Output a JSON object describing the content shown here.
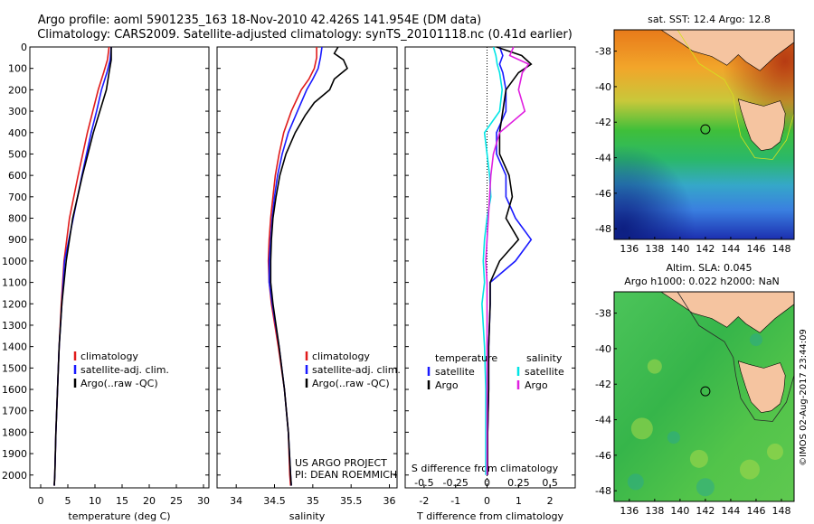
{
  "header": {
    "line1": "Argo profile: aoml 5901235_163 18-Nov-2010 42.426S 141.954E (DM data)",
    "line2": "Climatology: CARS2009. Satellite-adjusted climatology: synTS_20101118.nc (0.41d earlier)"
  },
  "credit": "US ARGO PROJECT",
  "pi": "PI: DEAN ROEMMICH",
  "stamp": "©IMOS 02-Aug-2017 23:44:09",
  "colors": {
    "climatology": "#e01b1b",
    "satellite": "#1a1aff",
    "argo": "#000000",
    "s_satellite": "#00e5e5",
    "s_argo": "#e020e0",
    "land": "#f5c4a0"
  },
  "chart_data": [
    {
      "type": "line",
      "id": "temperature",
      "xlabel": "temperature (deg C)",
      "xlim": [
        -2,
        31
      ],
      "xticks": [
        0,
        5,
        10,
        15,
        20,
        25,
        30
      ],
      "ylim": [
        2060,
        0
      ],
      "yticks": [
        0,
        100,
        200,
        300,
        400,
        500,
        600,
        700,
        800,
        900,
        1000,
        1100,
        1200,
        1300,
        1400,
        1500,
        1600,
        1700,
        1800,
        1900,
        2000
      ],
      "legend": [
        "climatology",
        "satellite-adj. clim.",
        "Argo(..raw -QC)"
      ],
      "legend_position": "lower-right",
      "series": [
        {
          "name": "climatology",
          "color": "#e01b1b",
          "depth": [
            0,
            60,
            120,
            200,
            300,
            400,
            600,
            800,
            1000,
            1200,
            1400,
            1600,
            1800,
            2000,
            2050
          ],
          "values": [
            12.6,
            12.3,
            11.6,
            10.6,
            9.6,
            8.6,
            6.9,
            5.3,
            4.3,
            3.8,
            3.4,
            3.1,
            2.8,
            2.6,
            2.5
          ]
        },
        {
          "name": "satellite-adj. clim.",
          "color": "#1a1aff",
          "depth": [
            0,
            60,
            120,
            200,
            300,
            400,
            600,
            800,
            1000,
            1200,
            1400,
            1600,
            1800,
            2000,
            2050
          ],
          "values": [
            13.0,
            12.8,
            12.2,
            11.2,
            10.3,
            9.3,
            7.6,
            6.0,
            4.4,
            3.9,
            3.4,
            3.1,
            2.8,
            2.6,
            2.5
          ]
        },
        {
          "name": "Argo(..raw -QC)",
          "color": "#000000",
          "depth": [
            0,
            60,
            120,
            200,
            300,
            400,
            600,
            800,
            1000,
            1200,
            1400,
            1600,
            1800,
            2000,
            2050
          ],
          "values": [
            13.0,
            13.0,
            12.6,
            12.1,
            10.9,
            9.7,
            7.7,
            5.9,
            4.7,
            3.9,
            3.4,
            3.1,
            2.8,
            2.6,
            2.5
          ]
        }
      ]
    },
    {
      "type": "line",
      "id": "salinity",
      "xlabel": "salinity",
      "xlim": [
        33.75,
        36.1
      ],
      "xticks": [
        34,
        34.5,
        35,
        35.5,
        36
      ],
      "ylim": [
        2060,
        0
      ],
      "legend": [
        "climatology",
        "satellite-adj. clim.",
        "Argo(..raw -QC)"
      ],
      "legend_position": "lower-right",
      "series": [
        {
          "name": "climatology",
          "color": "#e01b1b",
          "depth": [
            0,
            50,
            100,
            150,
            200,
            300,
            400,
            500,
            600,
            700,
            800,
            900,
            1000,
            1100,
            1200,
            1400,
            1600,
            1800,
            2000,
            2050
          ],
          "values": [
            35.05,
            35.05,
            35.02,
            34.95,
            34.85,
            34.72,
            34.62,
            34.56,
            34.51,
            34.48,
            34.45,
            34.43,
            34.42,
            34.43,
            34.46,
            34.55,
            34.63,
            34.68,
            34.7,
            34.71
          ]
        },
        {
          "name": "satellite-adj. clim.",
          "color": "#1a1aff",
          "depth": [
            0,
            50,
            100,
            150,
            200,
            300,
            400,
            500,
            600,
            700,
            800,
            900,
            1000,
            1100,
            1200,
            1400,
            1600,
            1800,
            2000,
            2050
          ],
          "values": [
            35.12,
            35.1,
            35.07,
            35.0,
            34.92,
            34.8,
            34.68,
            34.6,
            34.54,
            34.5,
            34.47,
            34.45,
            34.43,
            34.43,
            34.47,
            34.56,
            34.63,
            34.68,
            34.71,
            34.72
          ]
        },
        {
          "name": "Argo(..raw -QC)",
          "color": "#000000",
          "depth": [
            0,
            30,
            60,
            100,
            150,
            200,
            260,
            320,
            400,
            500,
            600,
            700,
            800,
            900,
            1000,
            1100,
            1200,
            1400,
            1600,
            1800,
            2000,
            2050
          ],
          "values": [
            35.33,
            35.28,
            35.4,
            35.45,
            35.28,
            35.22,
            35.02,
            34.9,
            34.77,
            34.65,
            34.57,
            34.52,
            34.48,
            34.46,
            34.45,
            34.45,
            34.48,
            34.56,
            34.63,
            34.68,
            34.71,
            34.72
          ]
        }
      ]
    },
    {
      "type": "line",
      "id": "difference",
      "xlabel": "T difference from climatology",
      "x2label": "S difference from climatology",
      "xlim": [
        -2.6,
        2.8
      ],
      "xticks": [
        -2,
        -1,
        0,
        1,
        2
      ],
      "x2lim": [
        -0.65,
        0.7
      ],
      "x2ticks": [
        -0.5,
        -0.25,
        0,
        0.25,
        0.5
      ],
      "x2ticklabels": [
        "-0.5",
        "-0.25",
        "0",
        "0.25",
        "0.5"
      ],
      "ylim": [
        2060,
        0
      ],
      "legend_titles": [
        "temperature",
        "salinity"
      ],
      "legend": [
        "satellite",
        "Argo",
        "satellite",
        "Argo"
      ],
      "legend_position": "lower-right",
      "series": [
        {
          "name": "satellite",
          "group": "temperature",
          "color": "#1a1aff",
          "depth": [
            0,
            40,
            80,
            120,
            200,
            300,
            400,
            500,
            600,
            700,
            800,
            900,
            1000,
            1100,
            1200,
            1400,
            1600,
            1800,
            2000
          ],
          "values": [
            0.4,
            0.5,
            0.4,
            0.5,
            0.6,
            0.6,
            0.3,
            0.3,
            0.6,
            0.6,
            0.9,
            1.4,
            0.9,
            0.1,
            0.1,
            0.05,
            0.05,
            0.02,
            0.02
          ]
        },
        {
          "name": "Argo",
          "group": "temperature",
          "color": "#000000",
          "depth": [
            0,
            40,
            80,
            120,
            200,
            300,
            400,
            500,
            600,
            700,
            800,
            900,
            1000,
            1100,
            1200,
            1400,
            1600,
            1800,
            2000
          ],
          "values": [
            0.3,
            1.1,
            1.4,
            1.0,
            0.6,
            0.5,
            0.4,
            0.4,
            0.7,
            0.8,
            0.6,
            1.0,
            0.4,
            0.1,
            0.1,
            0.05,
            0.05,
            0.02,
            0.02
          ]
        },
        {
          "name": "satellite",
          "group": "salinity",
          "color": "#00e5e5",
          "depth": [
            0,
            40,
            80,
            120,
            200,
            300,
            400,
            500,
            600,
            700,
            800,
            900,
            1000,
            1100,
            1200,
            1400,
            1600,
            1800,
            2000
          ],
          "values": [
            0.05,
            0.07,
            0.08,
            0.1,
            0.12,
            0.1,
            -0.02,
            0.0,
            0.02,
            0.03,
            0.0,
            -0.02,
            -0.03,
            -0.02,
            -0.04,
            -0.02,
            -0.01,
            -0.01,
            -0.01
          ]
        },
        {
          "name": "Argo",
          "group": "salinity",
          "color": "#e020e0",
          "depth": [
            0,
            40,
            80,
            120,
            200,
            300,
            400,
            500,
            600,
            700,
            800,
            900,
            1000,
            1100,
            1200,
            1400,
            1600,
            1800,
            2000
          ],
          "values": [
            0.21,
            0.18,
            0.33,
            0.28,
            0.25,
            0.3,
            0.1,
            0.05,
            0.03,
            0.02,
            0.01,
            0.0,
            -0.01,
            0.0,
            0.0,
            0.0,
            0.0,
            0.0,
            0.0
          ]
        }
      ]
    },
    {
      "type": "heatmap",
      "id": "sst_map",
      "title": "sat. SST: 12.4  Argo: 12.8",
      "xlim": [
        134.8,
        149.0
      ],
      "ylim": [
        -48.6,
        -36.8
      ],
      "xticks": [
        136,
        138,
        140,
        142,
        144,
        146,
        148
      ],
      "yticks": [
        -38,
        -40,
        -42,
        -44,
        -46,
        -48
      ],
      "argo_float": [
        142.0,
        -42.4
      ]
    },
    {
      "type": "heatmap",
      "id": "sla_map",
      "title": "Altim. SLA: 0.045",
      "subtitle": "Argo h1000: 0.022 h2000: NaN",
      "xlim": [
        134.8,
        149.0
      ],
      "ylim": [
        -48.6,
        -36.8
      ],
      "xticks": [
        136,
        138,
        140,
        142,
        144,
        146,
        148
      ],
      "yticks": [
        -38,
        -40,
        -42,
        -44,
        -46,
        -48
      ],
      "argo_float": [
        142.0,
        -42.4
      ]
    }
  ]
}
